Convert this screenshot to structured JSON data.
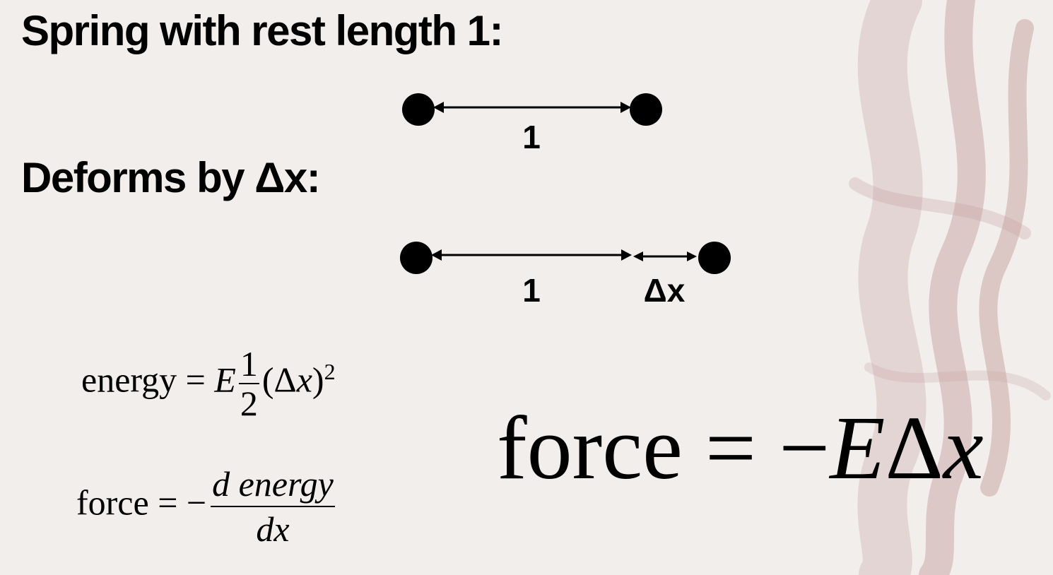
{
  "headings": {
    "rest": "Spring with rest length 1:",
    "deform": "Deforms by Δx:"
  },
  "diagram_rest": {
    "length_label": "1"
  },
  "diagram_deformed": {
    "length_label": "1",
    "delta_label": "Δx"
  },
  "formulas": {
    "energy": {
      "lhs": "energy",
      "eq": "=",
      "coef": "E",
      "frac_num": "1",
      "frac_den": "2",
      "tail": "(Δ",
      "var": "x",
      "close": ")",
      "exp": "2"
    },
    "force_derivative": {
      "lhs": "force",
      "eq": "=",
      "sign": "−",
      "num": "d energy",
      "den": "dx"
    },
    "force_simple": {
      "lhs": "force",
      "eq": "=",
      "rhs_sign": "−",
      "rhs_coef": "E",
      "rhs_delta": "Δ",
      "rhs_var": "x"
    }
  }
}
